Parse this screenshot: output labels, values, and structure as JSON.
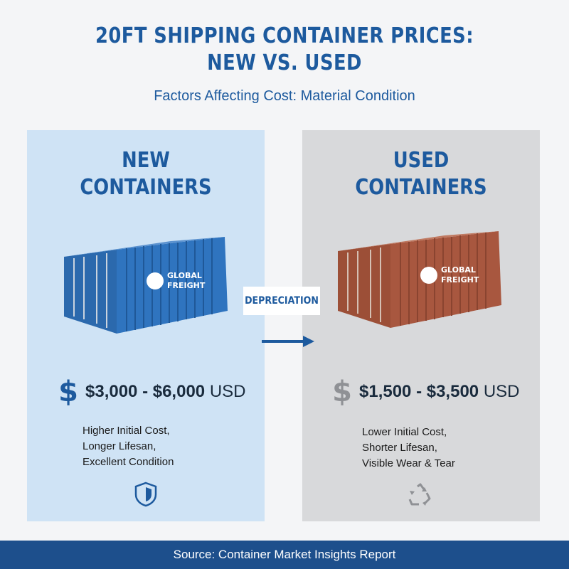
{
  "header": {
    "title_line1": "20FT SHIPPING CONTAINER PRICES:",
    "title_line2": "NEW VS. USED",
    "subtitle": "Factors Affecting Cost: Material Condition"
  },
  "new_panel": {
    "heading_line1": "NEW",
    "heading_line2": "CONTAINERS",
    "container_brand_line1": "GLOBAL",
    "container_brand_line2": "FREIGHT",
    "price_symbol": "$",
    "price_range": "$3,000 - $6,000",
    "price_unit": "USD",
    "desc_line1": "Higher Initial Cost,",
    "desc_line2": "Longer Lifesan,",
    "desc_line3": "Excellent Condition",
    "icon": "shield-icon",
    "color": "#2f6fb6"
  },
  "used_panel": {
    "heading_line1": "USED",
    "heading_line2": "CONTAINERS",
    "container_brand_line1": "GLOBAL",
    "container_brand_line2": "FREIGHT",
    "price_symbol": "$",
    "price_range": "$1,500 - $3,500",
    "price_unit": "USD",
    "desc_line1": "Lower Initial Cost,",
    "desc_line2": "Shorter Lifesan,",
    "desc_line3": "Visible Wear & Tear",
    "icon": "recycle-icon",
    "color": "#a8573f"
  },
  "middle": {
    "label": "DEPRECIATION",
    "arrow_icon": "arrow-right-icon"
  },
  "footer": {
    "source": "Source: Container Market Insights Report"
  }
}
